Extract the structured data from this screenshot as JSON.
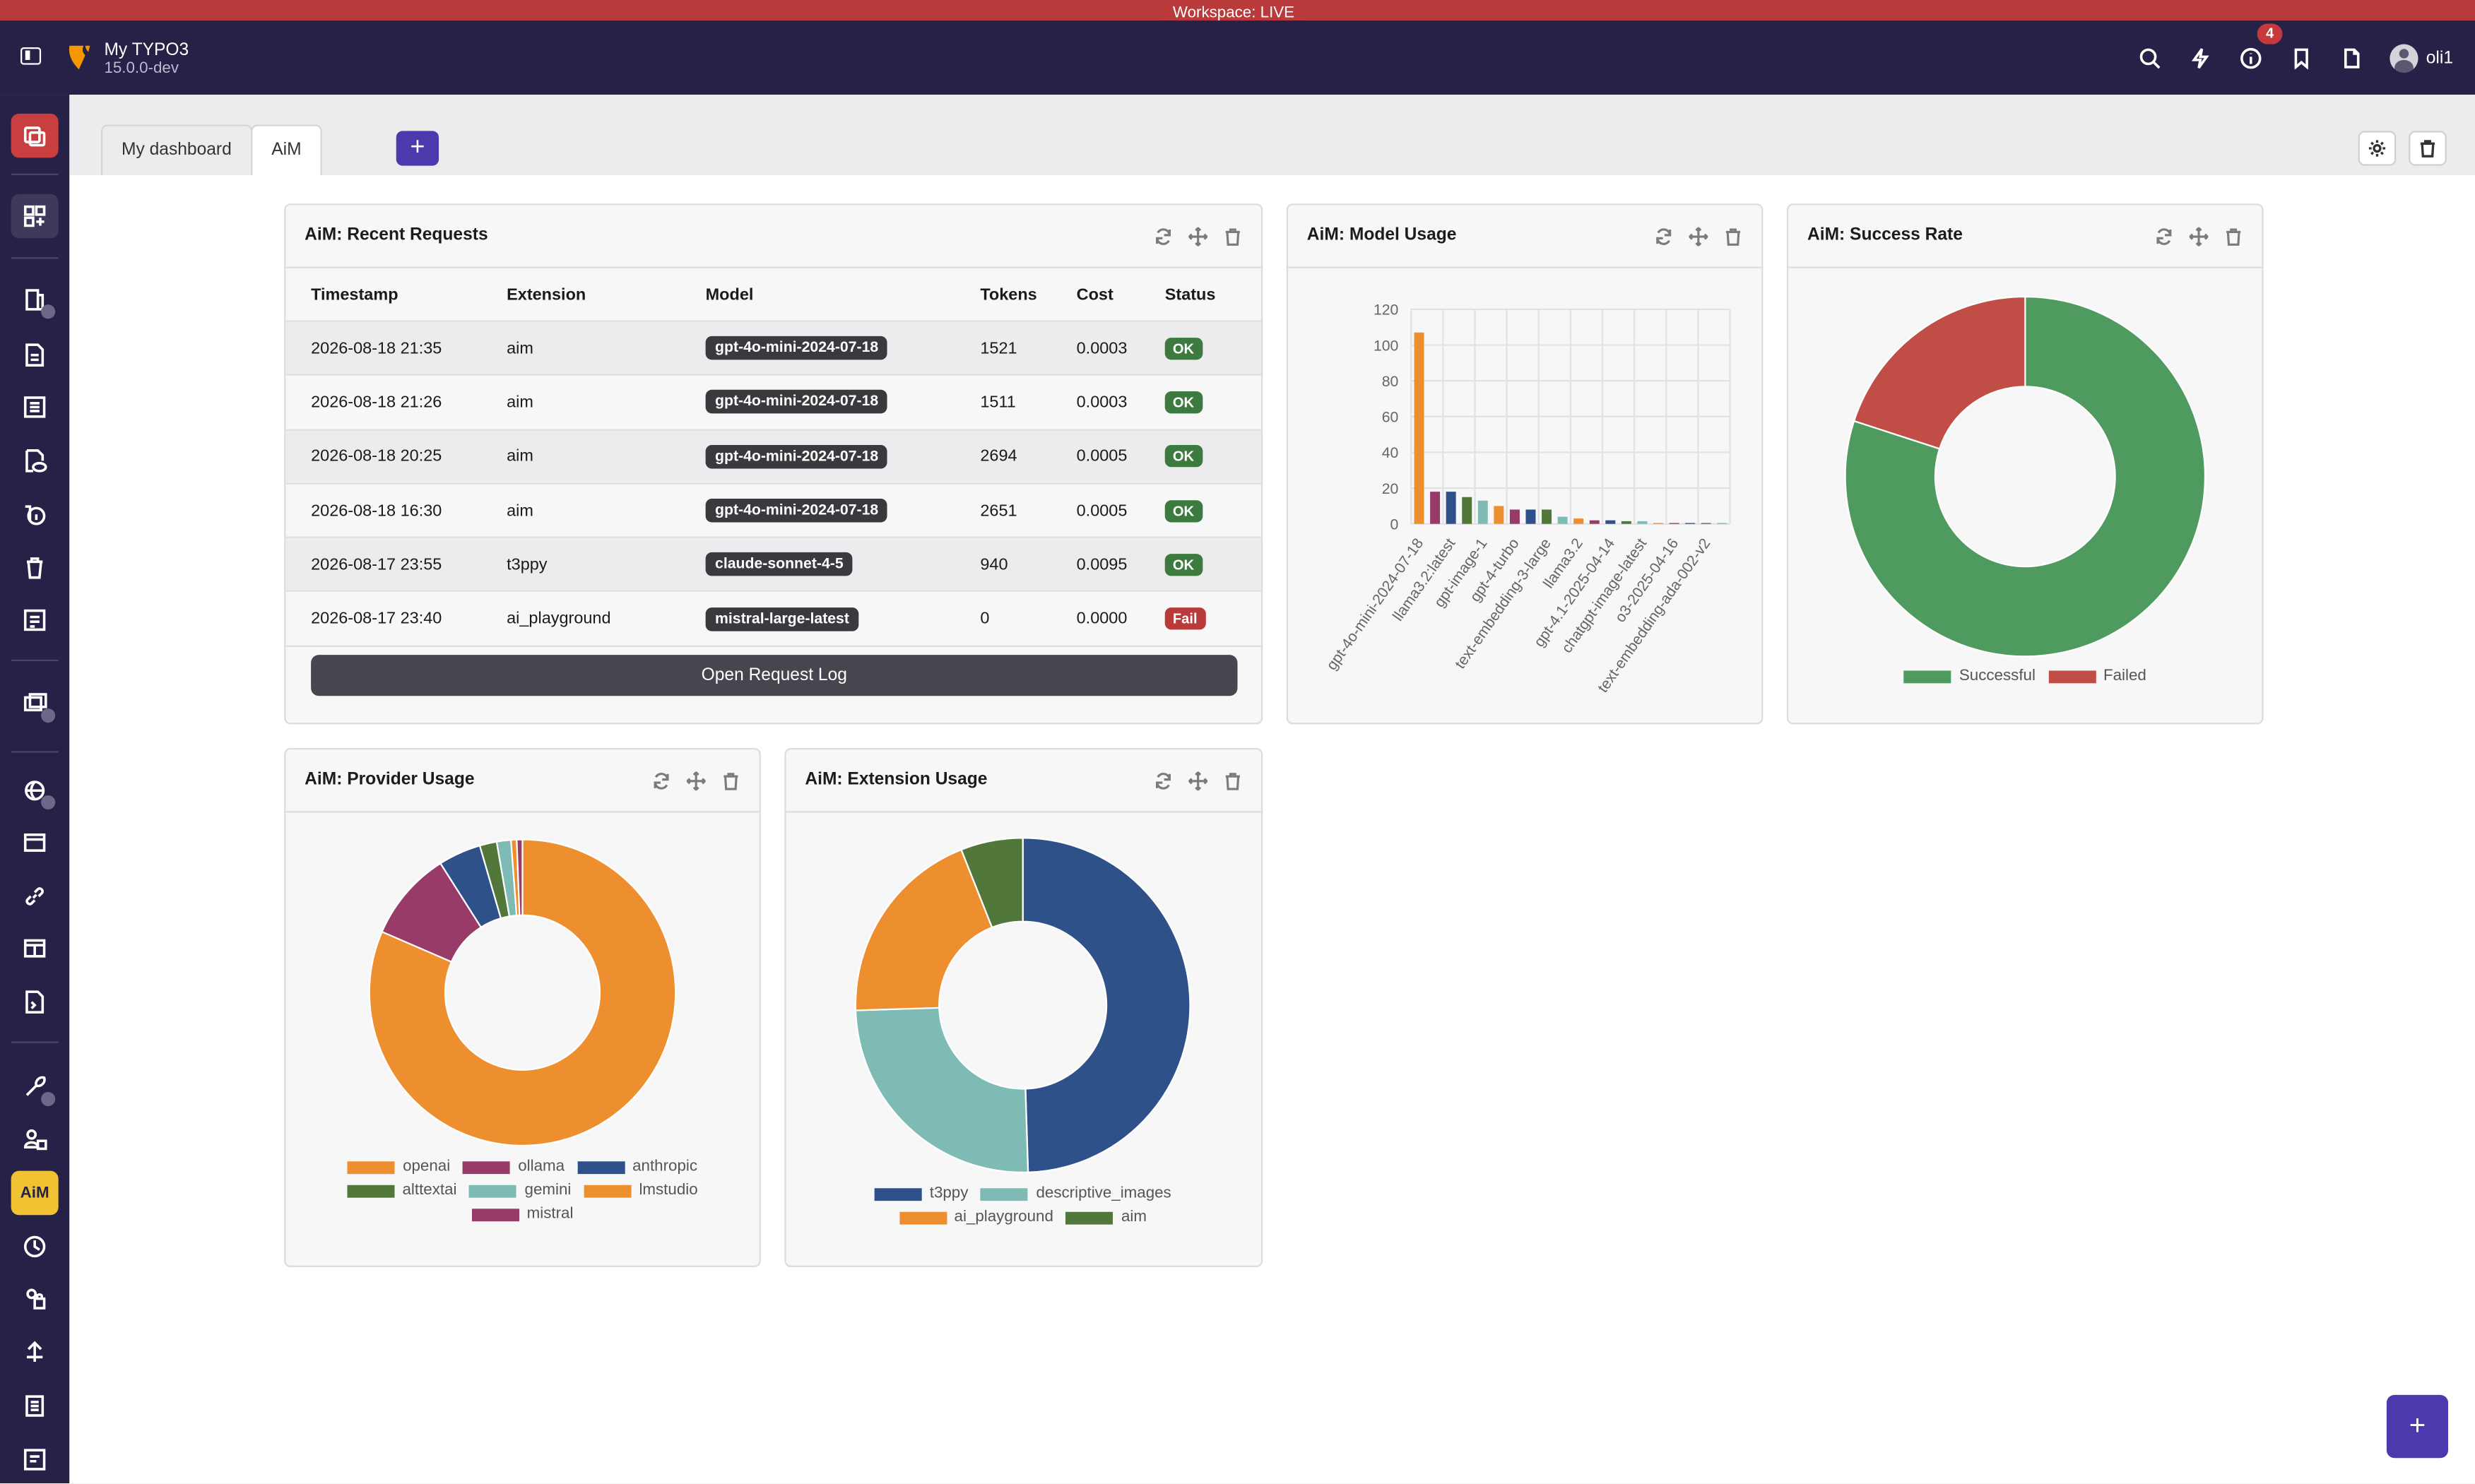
{
  "workspace": {
    "label": "Workspace: LIVE"
  },
  "site": {
    "name": "My TYPO3",
    "version": "15.0.0-dev"
  },
  "topbar": {
    "notification_count": "4",
    "username": "oli1"
  },
  "tabs": [
    {
      "label": "My dashboard"
    },
    {
      "label": "AiM"
    }
  ],
  "add_tab_label": "+",
  "add_widget_label": "+",
  "recent_requests": {
    "title": "AiM: Recent Requests",
    "columns": [
      "Timestamp",
      "Extension",
      "Model",
      "Tokens",
      "Cost",
      "Status"
    ],
    "rows": [
      {
        "timestamp": "2026-08-18 21:35",
        "extension": "aim",
        "model": "gpt-4o-mini-2024-07-18",
        "tokens": "1521",
        "cost": "0.0003",
        "status": "OK"
      },
      {
        "timestamp": "2026-08-18 21:26",
        "extension": "aim",
        "model": "gpt-4o-mini-2024-07-18",
        "tokens": "1511",
        "cost": "0.0003",
        "status": "OK"
      },
      {
        "timestamp": "2026-08-18 20:25",
        "extension": "aim",
        "model": "gpt-4o-mini-2024-07-18",
        "tokens": "2694",
        "cost": "0.0005",
        "status": "OK"
      },
      {
        "timestamp": "2026-08-18 16:30",
        "extension": "aim",
        "model": "gpt-4o-mini-2024-07-18",
        "tokens": "2651",
        "cost": "0.0005",
        "status": "OK"
      },
      {
        "timestamp": "2026-08-17 23:55",
        "extension": "t3ppy",
        "model": "claude-sonnet-4-5",
        "tokens": "940",
        "cost": "0.0095",
        "status": "OK"
      },
      {
        "timestamp": "2026-08-17 23:40",
        "extension": "ai_playground",
        "model": "mistral-large-latest",
        "tokens": "0",
        "cost": "0.0000",
        "status": "Fail"
      }
    ],
    "button_label": "Open Request Log"
  },
  "model_usage": {
    "title": "AiM: Model Usage",
    "chart_data": {
      "type": "bar",
      "categories": [
        "gpt-4o-mini-2024-07-18",
        "",
        "llama3.2:latest",
        "",
        "gpt-image-1",
        "",
        "gpt-4-turbo",
        "",
        "text-embedding-3-large",
        "",
        "llama3.2",
        "",
        "gpt-4.1-2025-04-14",
        "",
        "chatgpt-image-latest",
        "",
        "o3-2025-04-16",
        "",
        "text-embedding-ada-002-v2",
        ""
      ],
      "values": [
        107,
        18,
        18,
        15,
        13,
        10,
        8,
        8,
        8,
        4,
        3,
        2,
        2,
        1.5,
        1.5,
        0.5,
        0.5,
        0.5,
        0.5,
        0.5
      ],
      "colors": [
        "#ee8f2f",
        "#983b68",
        "#2e5189",
        "#52773a",
        "#7dbbb4",
        "#ee8f2f",
        "#983b68",
        "#2e5189",
        "#52773a",
        "#7dbbb4",
        "#ee8f2f",
        "#983b68",
        "#2e5189",
        "#52773a",
        "#7dbbb4",
        "#ee8f2f",
        "#983b68",
        "#2e5189",
        "#52773a",
        "#7dbbb4"
      ],
      "y_ticks": [
        "0",
        "20",
        "40",
        "60",
        "80",
        "100",
        "120"
      ],
      "ylim": [
        0,
        120
      ],
      "grid": true
    }
  },
  "success_rate": {
    "title": "AiM: Success Rate",
    "chart_data": {
      "type": "pie",
      "labels": [
        "Successful",
        "Failed"
      ],
      "values": [
        80,
        20
      ],
      "colors": [
        "#4f9a5f",
        "#c04e46"
      ],
      "legend": "bottom"
    }
  },
  "provider_usage": {
    "title": "AiM: Provider Usage",
    "chart_data": {
      "type": "pie",
      "labels": [
        "openai",
        "ollama",
        "anthropic",
        "alttextai",
        "gemini",
        "lmstudio",
        "mistral"
      ],
      "values": [
        81.5,
        9.5,
        4.5,
        1.8,
        1.5,
        0.6,
        0.6
      ],
      "colors": [
        "#ee8f2f",
        "#983b68",
        "#2e5189",
        "#52773a",
        "#7dbbb4",
        "#ee8f2f",
        "#983b68"
      ],
      "legend": "bottom"
    }
  },
  "extension_usage": {
    "title": "AiM: Extension Usage",
    "chart_data": {
      "type": "pie",
      "labels": [
        "t3ppy",
        "descriptive_images",
        "ai_playground",
        "aim"
      ],
      "values": [
        49.5,
        25,
        19.5,
        6
      ],
      "colors": [
        "#2e5189",
        "#7dbbb4",
        "#ee8f2f",
        "#52773a"
      ],
      "legend": "bottom"
    }
  },
  "icons": {
    "reload": "refresh-icon",
    "move": "move-icon",
    "delete": "trash-icon"
  }
}
